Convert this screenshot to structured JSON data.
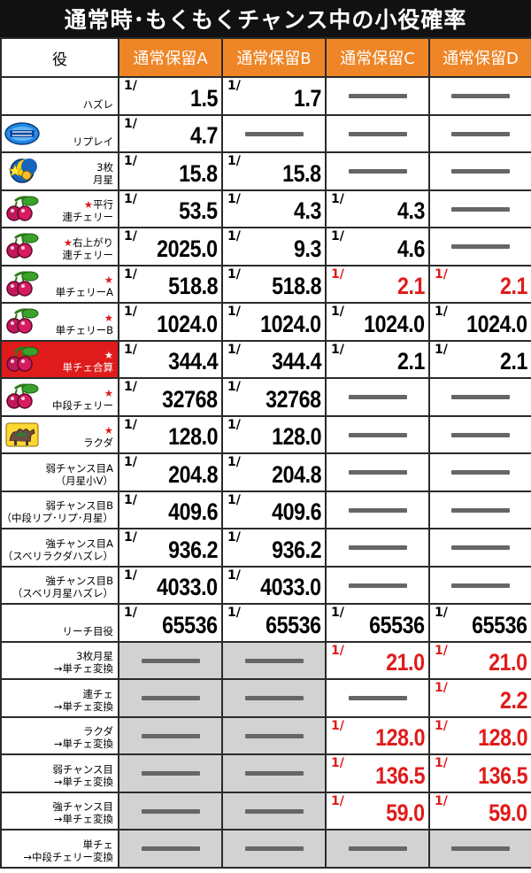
{
  "title": "通常時･もくもくチャンス中の小役確率",
  "header": {
    "yaku": "役",
    "modes": [
      "通常保留A",
      "通常保留B",
      "通常保留C",
      "通常保留D"
    ]
  },
  "fraction_mark": "1/",
  "colors": {
    "accent": "#ee8527",
    "red": "#e01b1b",
    "header_bg": "#111111",
    "gray_cell": "#d2d2d2",
    "dash": "#666666"
  },
  "rows": [
    {
      "icon": "none",
      "label": [
        "ハズレ"
      ],
      "cells": [
        {
          "v": "1.5"
        },
        {
          "v": "1.7"
        },
        {
          "v": null
        },
        {
          "v": null
        }
      ]
    },
    {
      "icon": "replay-icon",
      "label": [
        "リプレイ"
      ],
      "cells": [
        {
          "v": "4.7"
        },
        {
          "v": null
        },
        {
          "v": null
        },
        {
          "v": null
        }
      ]
    },
    {
      "icon": "three-moon-star-icon",
      "label": [
        "3枚",
        "月星"
      ],
      "cells": [
        {
          "v": "15.8"
        },
        {
          "v": "15.8"
        },
        {
          "v": null
        },
        {
          "v": null
        }
      ]
    },
    {
      "icon": "cherry-icon",
      "star": true,
      "label": [
        "平行",
        "連チェリー"
      ],
      "cells": [
        {
          "v": "53.5"
        },
        {
          "v": "4.3"
        },
        {
          "v": "4.3"
        },
        {
          "v": null
        }
      ]
    },
    {
      "icon": "cherry-icon",
      "star": true,
      "label": [
        "右上がり",
        "連チェリー"
      ],
      "cells": [
        {
          "v": "2025.0"
        },
        {
          "v": "9.3"
        },
        {
          "v": "4.6"
        },
        {
          "v": null
        }
      ]
    },
    {
      "icon": "cherry-icon",
      "star": true,
      "label": [
        "",
        "単チェリーA"
      ],
      "cells": [
        {
          "v": "518.8"
        },
        {
          "v": "518.8"
        },
        {
          "v": "2.1",
          "red": true
        },
        {
          "v": "2.1",
          "red": true
        }
      ]
    },
    {
      "icon": "cherry-icon",
      "star": true,
      "label": [
        "",
        "単チェリーB"
      ],
      "cells": [
        {
          "v": "1024.0"
        },
        {
          "v": "1024.0"
        },
        {
          "v": "1024.0"
        },
        {
          "v": "1024.0"
        }
      ]
    },
    {
      "icon": "cherry-icon",
      "star": true,
      "highlight": true,
      "label": [
        "",
        "単チェ合算"
      ],
      "cells": [
        {
          "v": "344.4"
        },
        {
          "v": "344.4"
        },
        {
          "v": "2.1"
        },
        {
          "v": "2.1"
        }
      ]
    },
    {
      "icon": "cherry-icon",
      "star": true,
      "label": [
        "",
        "中段チェリー"
      ],
      "cells": [
        {
          "v": "32768"
        },
        {
          "v": "32768"
        },
        {
          "v": null
        },
        {
          "v": null
        }
      ]
    },
    {
      "icon": "camel-icon",
      "star": true,
      "label": [
        "",
        "ラクダ"
      ],
      "cells": [
        {
          "v": "128.0"
        },
        {
          "v": "128.0"
        },
        {
          "v": null
        },
        {
          "v": null
        }
      ]
    },
    {
      "icon": "none",
      "label": [
        "弱チャンス目A",
        "（月星小V）"
      ],
      "cells": [
        {
          "v": "204.8"
        },
        {
          "v": "204.8"
        },
        {
          "v": null
        },
        {
          "v": null
        }
      ]
    },
    {
      "icon": "none",
      "label": [
        "弱チャンス目B",
        "（中段リプ･リプ･月星）"
      ],
      "cells": [
        {
          "v": "409.6"
        },
        {
          "v": "409.6"
        },
        {
          "v": null
        },
        {
          "v": null
        }
      ]
    },
    {
      "icon": "none",
      "label": [
        "強チャンス目A",
        "（スベリラクダハズレ）"
      ],
      "cells": [
        {
          "v": "936.2"
        },
        {
          "v": "936.2"
        },
        {
          "v": null
        },
        {
          "v": null
        }
      ]
    },
    {
      "icon": "none",
      "label": [
        "強チャンス目B",
        "（スベリ月星ハズレ）"
      ],
      "cells": [
        {
          "v": "4033.0"
        },
        {
          "v": "4033.0"
        },
        {
          "v": null
        },
        {
          "v": null
        }
      ]
    },
    {
      "icon": "none",
      "label": [
        "リーチ目役"
      ],
      "cells": [
        {
          "v": "65536"
        },
        {
          "v": "65536"
        },
        {
          "v": "65536"
        },
        {
          "v": "65536"
        }
      ]
    },
    {
      "icon": "none",
      "label": [
        "3枚月星",
        "→単チェ変換"
      ],
      "cells": [
        {
          "v": null,
          "gray": true
        },
        {
          "v": null,
          "gray": true
        },
        {
          "v": "21.0",
          "red": true
        },
        {
          "v": "21.0",
          "red": true
        }
      ]
    },
    {
      "icon": "none",
      "label": [
        "連チェ",
        "→単チェ変換"
      ],
      "cells": [
        {
          "v": null,
          "gray": true
        },
        {
          "v": null,
          "gray": true
        },
        {
          "v": null
        },
        {
          "v": "2.2",
          "red": true
        }
      ]
    },
    {
      "icon": "none",
      "label": [
        "ラクダ",
        "→単チェ変換"
      ],
      "cells": [
        {
          "v": null,
          "gray": true
        },
        {
          "v": null,
          "gray": true
        },
        {
          "v": "128.0",
          "red": true
        },
        {
          "v": "128.0",
          "red": true
        }
      ]
    },
    {
      "icon": "none",
      "label": [
        "弱チャンス目",
        "→単チェ変換"
      ],
      "cells": [
        {
          "v": null,
          "gray": true
        },
        {
          "v": null,
          "gray": true
        },
        {
          "v": "136.5",
          "red": true
        },
        {
          "v": "136.5",
          "red": true
        }
      ]
    },
    {
      "icon": "none",
      "label": [
        "強チャンス目",
        "→単チェ変換"
      ],
      "cells": [
        {
          "v": null,
          "gray": true
        },
        {
          "v": null,
          "gray": true
        },
        {
          "v": "59.0",
          "red": true
        },
        {
          "v": "59.0",
          "red": true
        }
      ]
    },
    {
      "icon": "none",
      "label": [
        "単チェ",
        "→中段チェリー変換"
      ],
      "cells": [
        {
          "v": null,
          "gray": true
        },
        {
          "v": null,
          "gray": true
        },
        {
          "v": null,
          "gray": true
        },
        {
          "v": null,
          "gray": true
        }
      ]
    }
  ]
}
